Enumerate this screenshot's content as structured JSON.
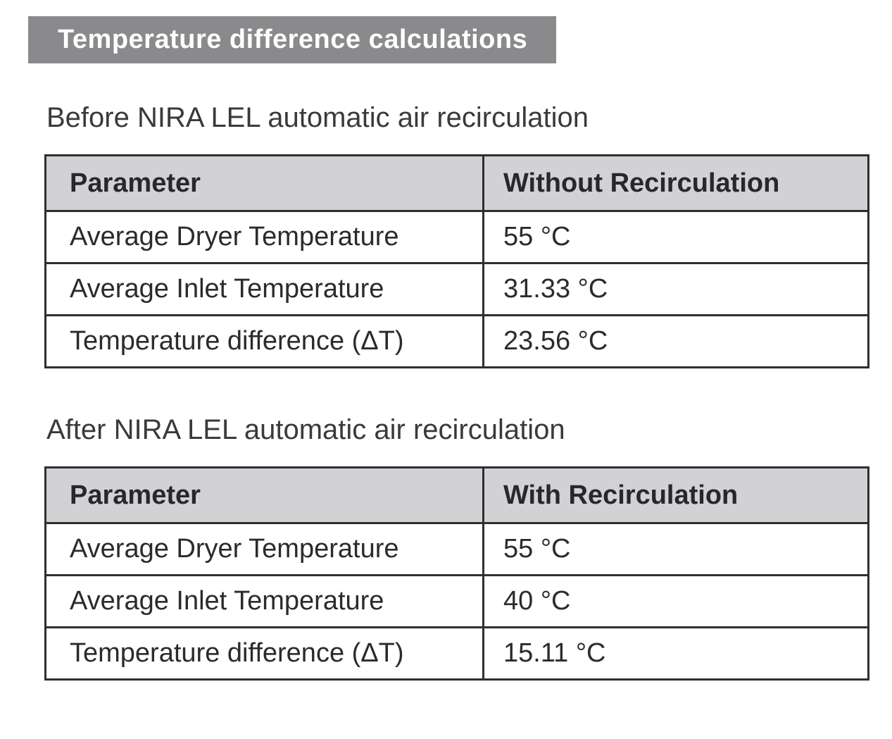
{
  "banner": {
    "title": "Temperature difference calculations",
    "background_color": "#8a8a8c",
    "text_color": "#ffffff"
  },
  "colors": {
    "table_header_background": "#d2d2d5",
    "table_border": "#2f2f31",
    "body_text": "#2b2b2d",
    "heading_text": "#3a3a3c",
    "page_background": "#ffffff"
  },
  "sections": [
    {
      "heading": "Before NIRA LEL automatic air recirculation",
      "table": {
        "columns": [
          "Parameter",
          "Without Recirculation"
        ],
        "rows": [
          [
            "Average Dryer Temperature",
            "55 °C"
          ],
          [
            "Average Inlet Temperature",
            "31.33 °C"
          ],
          [
            "Temperature difference (ΔT)",
            "23.56 °C"
          ]
        ]
      }
    },
    {
      "heading": "After NIRA LEL automatic air recirculation",
      "table": {
        "columns": [
          "Parameter",
          "With Recirculation"
        ],
        "rows": [
          [
            "Average Dryer Temperature",
            "55 °C"
          ],
          [
            "Average Inlet Temperature",
            "40 °C"
          ],
          [
            "Temperature difference (ΔT)",
            "15.11 °C"
          ]
        ]
      }
    }
  ]
}
